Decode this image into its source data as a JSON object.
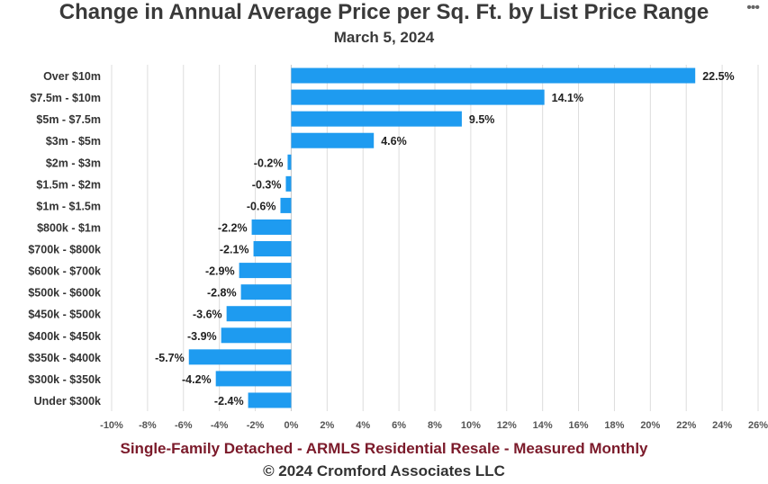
{
  "chart_data": {
    "type": "bar",
    "orientation": "horizontal",
    "title": "Change in Annual Average Price per Sq. Ft. by List Price Range",
    "subtitle": "March 5, 2024",
    "categories": [
      "Over $10m",
      "$7.5m - $10m",
      "$5m - $7.5m",
      "$3m - $5m",
      "$2m - $3m",
      "$1.5m - $2m",
      "$1m - $1.5m",
      "$800k - $1m",
      "$700k - $800k",
      "$600k - $700k",
      "$500k - $600k",
      "$450k - $500k",
      "$400k - $450k",
      "$350k - $400k",
      "$300k - $350k",
      "Under $300k"
    ],
    "values": [
      22.5,
      14.1,
      9.5,
      4.6,
      -0.2,
      -0.3,
      -0.6,
      -2.2,
      -2.1,
      -2.9,
      -2.8,
      -3.6,
      -3.9,
      -5.7,
      -4.2,
      -2.4
    ],
    "data_labels": [
      "22.5%",
      "14.1%",
      "9.5%",
      "4.6%",
      "-0.2%",
      "-0.3%",
      "-0.6%",
      "-2.2%",
      "-2.1%",
      "-2.9%",
      "-2.8%",
      "-3.6%",
      "-3.9%",
      "-5.7%",
      "-4.2%",
      "-2.4%"
    ],
    "xlim": [
      -10,
      26
    ],
    "xticks": [
      -10,
      -8,
      -6,
      -4,
      -2,
      0,
      2,
      4,
      6,
      8,
      10,
      12,
      14,
      16,
      18,
      20,
      22,
      24,
      26
    ],
    "xtick_labels": [
      "-10%",
      "-8%",
      "-6%",
      "-4%",
      "-2%",
      "0%",
      "2%",
      "4%",
      "6%",
      "8%",
      "10%",
      "12%",
      "14%",
      "16%",
      "18%",
      "20%",
      "22%",
      "24%",
      "26%"
    ],
    "grid": true,
    "bar_color": "#1e9bf0",
    "xlabel": "",
    "ylabel": ""
  },
  "menu_label": "•••",
  "footer": {
    "line1": "Single-Family Detached - ARMLS Residential Resale - Measured Monthly",
    "line2": "© 2024 Cromford Associates LLC"
  }
}
